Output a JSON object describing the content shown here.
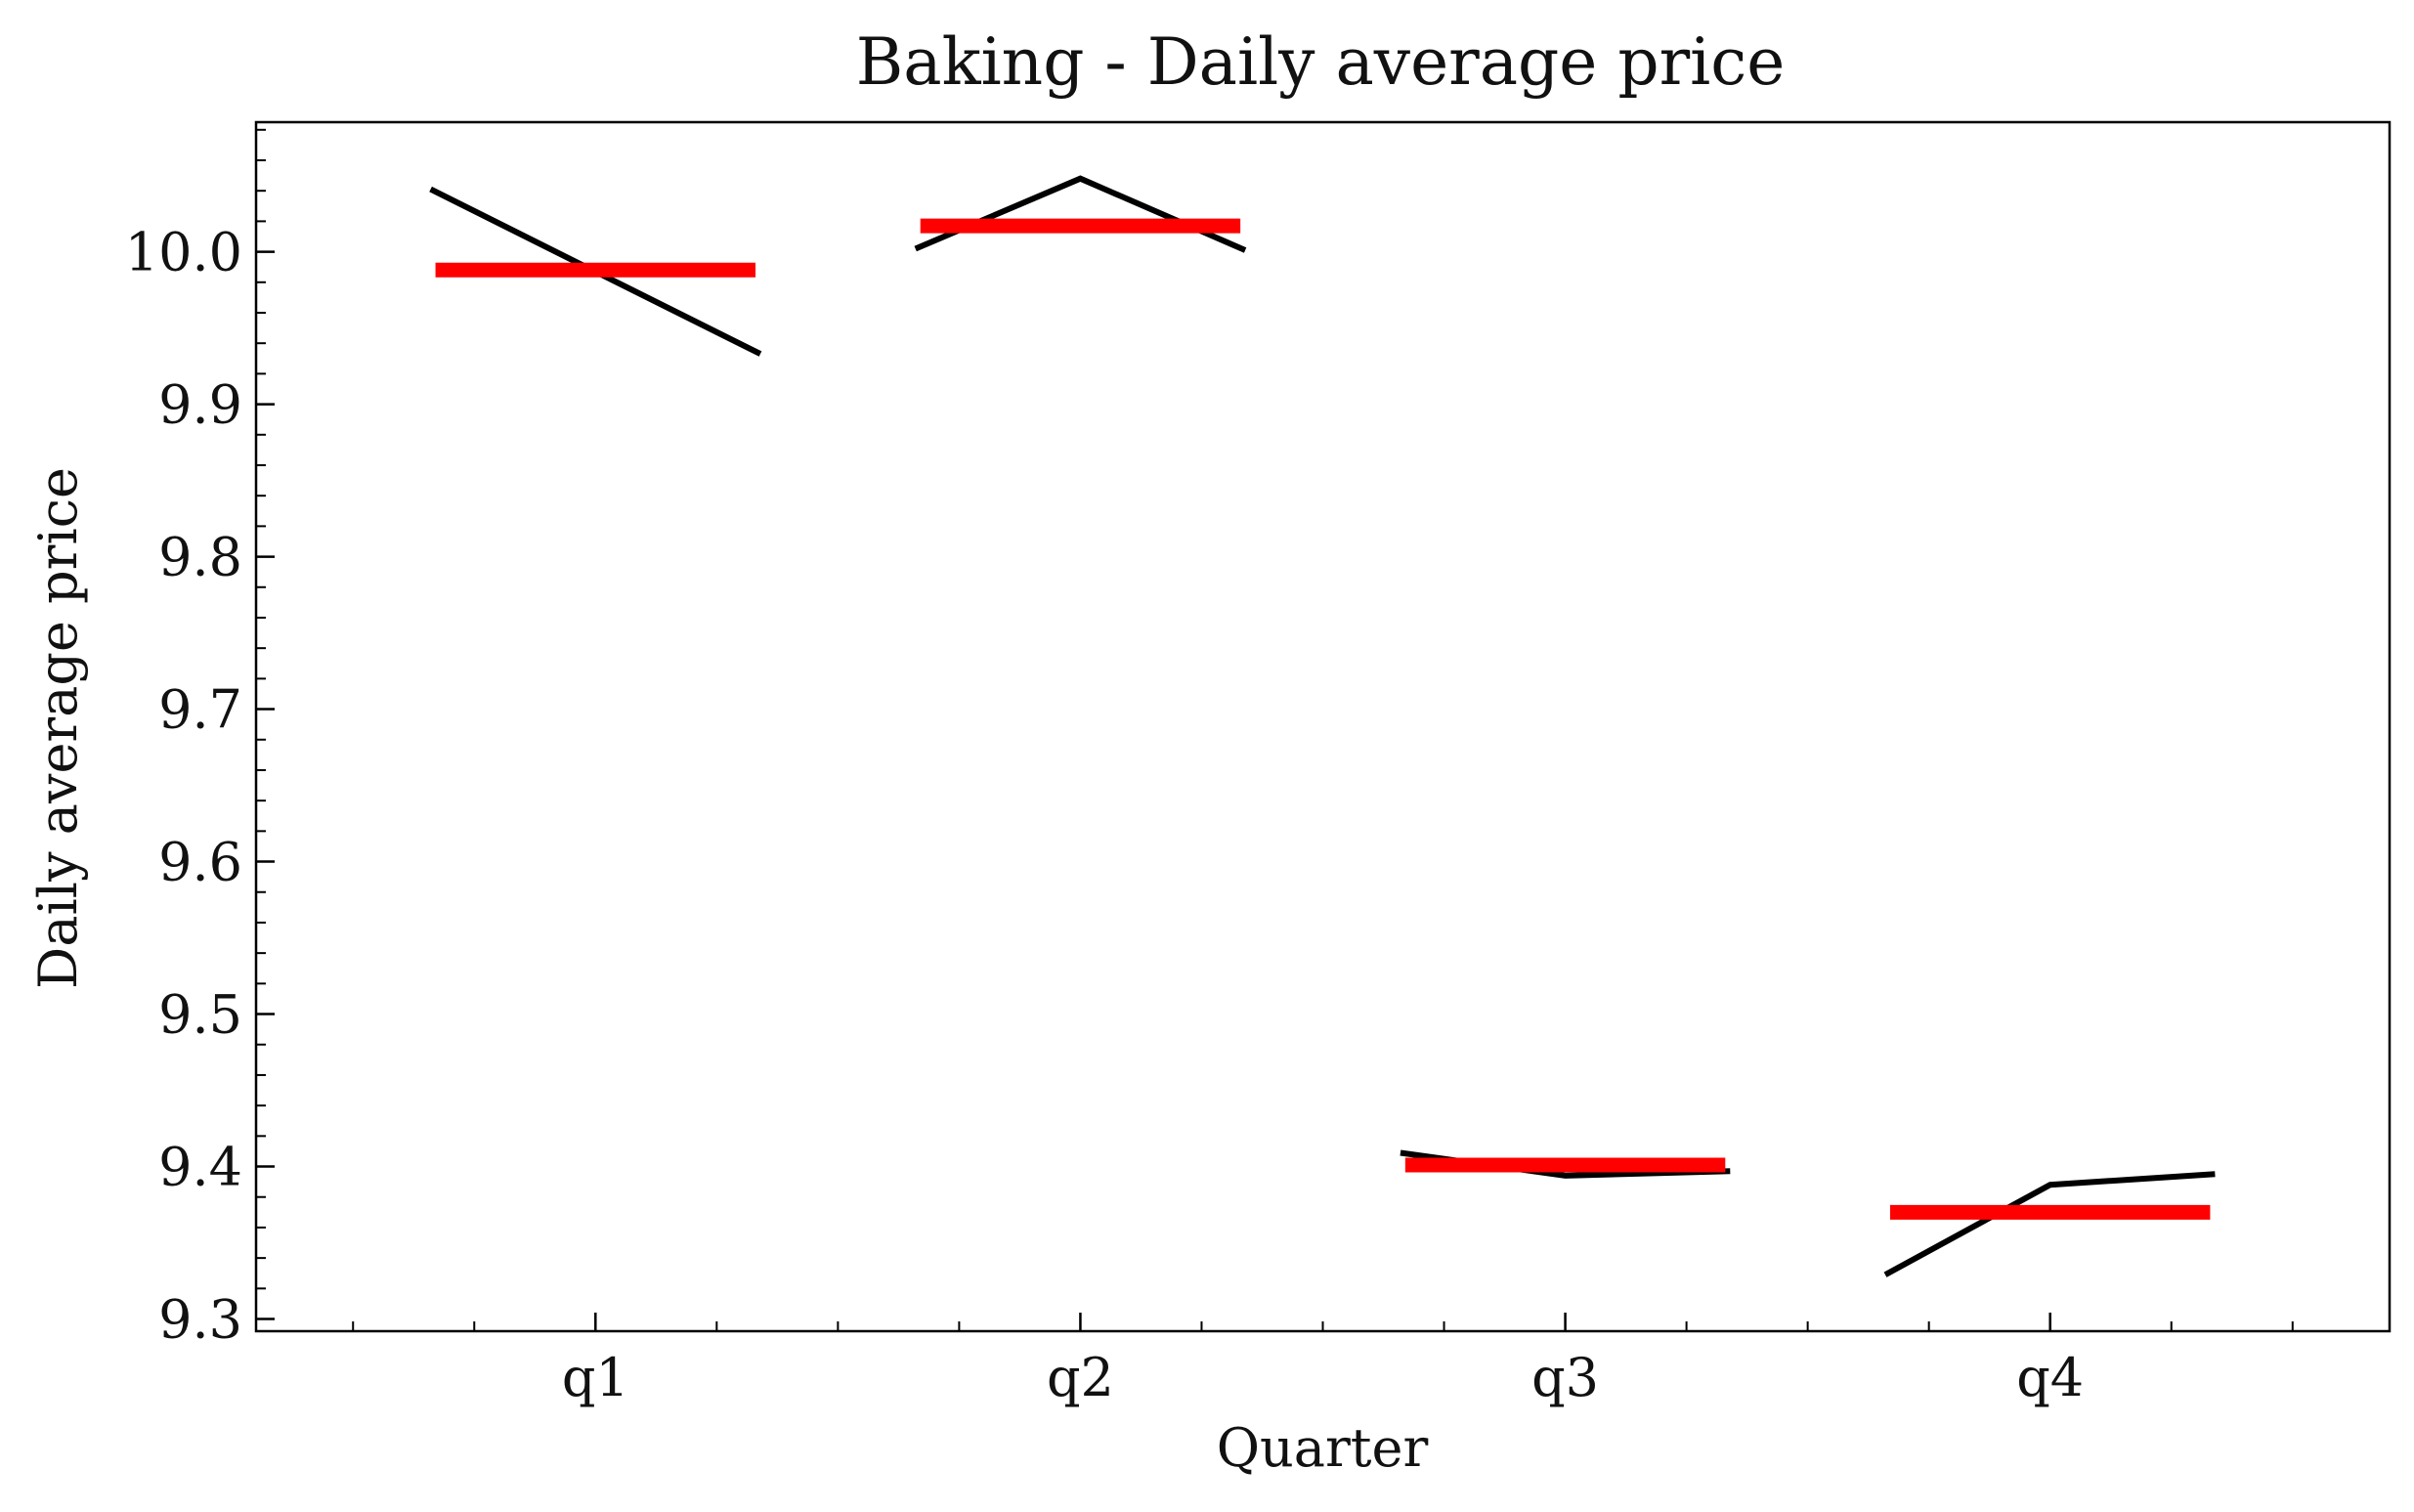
{
  "chart_data": {
    "type": "line",
    "title": "Baking - Daily average price",
    "xlabel": "Quarter",
    "ylabel": "Daily average price",
    "categories": [
      "q1",
      "q2",
      "q3",
      "q4"
    ],
    "ylim": [
      9.292,
      10.085
    ],
    "yticks": [
      9.3,
      9.4,
      9.5,
      9.6,
      9.7,
      9.8,
      9.9,
      10.0
    ],
    "ytick_labels": [
      "9.3",
      "9.4",
      "9.5",
      "9.6",
      "9.7",
      "9.8",
      "9.9",
      "10.0"
    ],
    "grid": false,
    "legend": "none",
    "series": [
      {
        "role": "monthly values (three months per quarter)",
        "color": "#000000",
        "values": [
          [
            10.041,
            9.987,
            9.933
          ],
          [
            10.002,
            10.048,
            10.001
          ],
          [
            9.409,
            9.394,
            9.397
          ],
          [
            9.329,
            9.388,
            9.395
          ]
        ]
      },
      {
        "role": "quarter mean",
        "color": "#ff0000",
        "values": [
          9.988,
          10.017,
          9.401,
          9.37
        ]
      }
    ]
  }
}
